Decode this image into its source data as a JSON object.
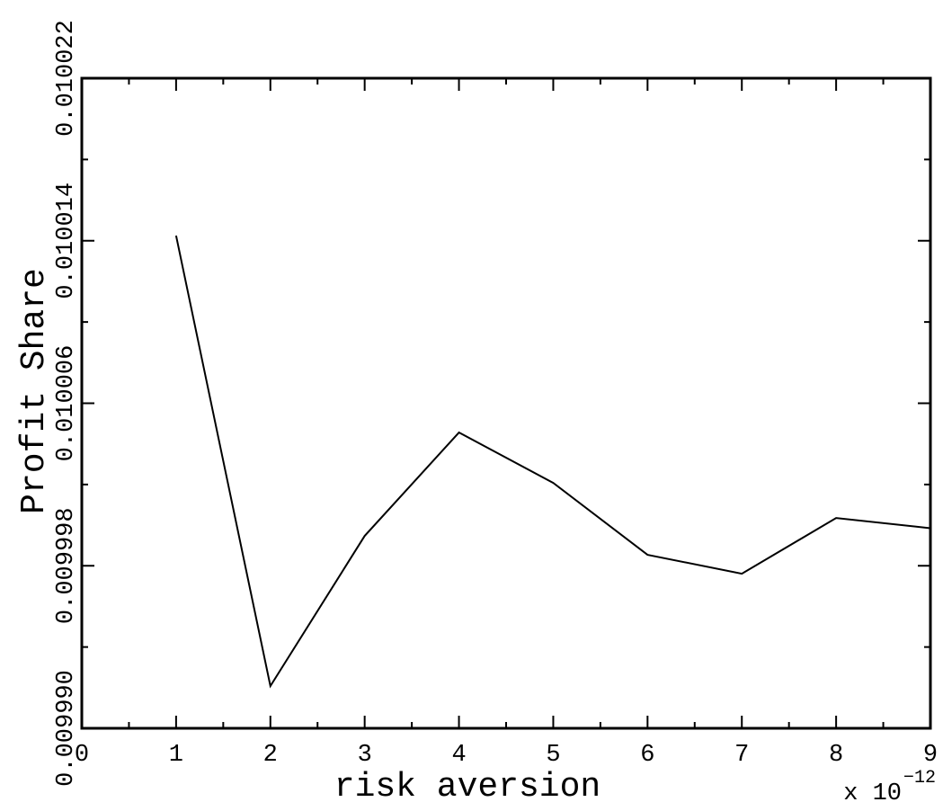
{
  "chart_data": {
    "type": "line",
    "x_label": "risk aversion",
    "y_label": "Profit Share",
    "x_offset_text": {
      "base": "x 10",
      "exponent": "−12"
    },
    "x": [
      1,
      2,
      3,
      4,
      5,
      6,
      7,
      8,
      9
    ],
    "values": [
      0.01001425,
      0.00999208,
      0.00999947,
      0.01000456,
      0.01000208,
      0.00999854,
      0.00999761,
      0.01000035,
      0.00999985
    ],
    "color": "#000000",
    "xlim": [
      0,
      9
    ],
    "xticks": [
      0,
      1,
      2,
      3,
      4,
      5,
      6,
      7,
      8,
      9
    ],
    "xminor_ticks": [
      0.5,
      1.5,
      2.5,
      3.5,
      4.5,
      5.5,
      6.5,
      7.5,
      8.5
    ],
    "ylim": [
      0.00999,
      0.010022
    ],
    "yticks": [
      {
        "value": 0.00999,
        "label": "0.009990"
      },
      0.009998,
      0.010006,
      0.010014,
      0.010022
    ],
    "yminor_ticks": [
      0.009994,
      0.010002,
      0.01001,
      0.010018
    ],
    "grid": false
  }
}
